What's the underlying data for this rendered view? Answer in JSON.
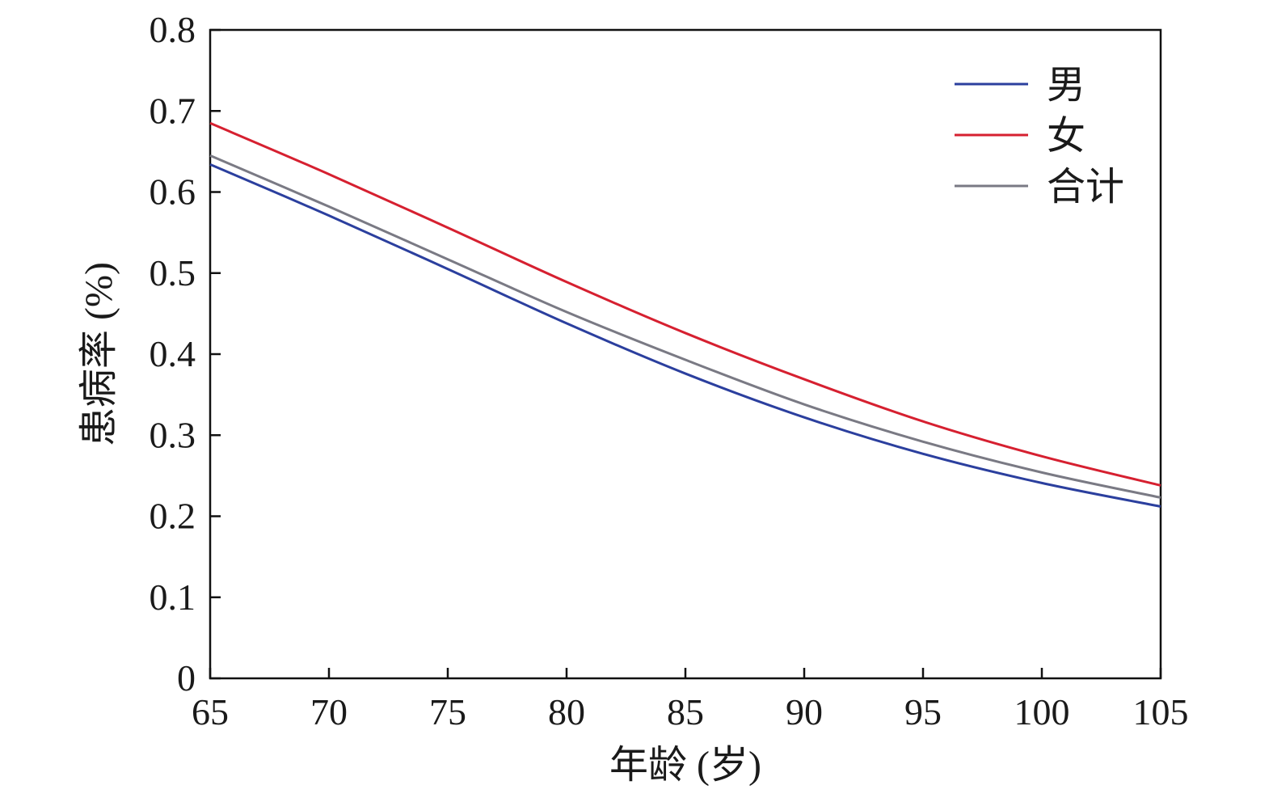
{
  "chart_data": {
    "type": "line",
    "title": "",
    "xlabel": "年龄 (岁)",
    "ylabel": "患病率 (%)",
    "xlim": [
      65,
      105
    ],
    "ylim": [
      0,
      0.8
    ],
    "xticks": [
      65,
      70,
      75,
      80,
      85,
      90,
      95,
      100,
      105
    ],
    "yticks": [
      0,
      0.1,
      0.2,
      0.3,
      0.4,
      0.5,
      0.6,
      0.7,
      0.8
    ],
    "xtick_labels": [
      "65",
      "70",
      "75",
      "80",
      "85",
      "90",
      "95",
      "100",
      "105"
    ],
    "ytick_labels": [
      "0",
      "0.1",
      "0.2",
      "0.3",
      "0.4",
      "0.5",
      "0.6",
      "0.7",
      "0.8"
    ],
    "grid": false,
    "legend_position": "top-right",
    "x": [
      65,
      70,
      75,
      80,
      85,
      90,
      95,
      100,
      105
    ],
    "series": [
      {
        "name": "男",
        "color": "#2b3f9e",
        "values": [
          0.634,
          0.571,
          0.505,
          0.438,
          0.376,
          0.322,
          0.277,
          0.241,
          0.212
        ]
      },
      {
        "name": "女",
        "color": "#d62030",
        "values": [
          0.685,
          0.622,
          0.556,
          0.489,
          0.426,
          0.369,
          0.317,
          0.274,
          0.238
        ]
      },
      {
        "name": "合计",
        "color": "#7a7a84",
        "values": [
          0.645,
          0.582,
          0.517,
          0.452,
          0.393,
          0.338,
          0.292,
          0.254,
          0.223
        ]
      }
    ]
  }
}
